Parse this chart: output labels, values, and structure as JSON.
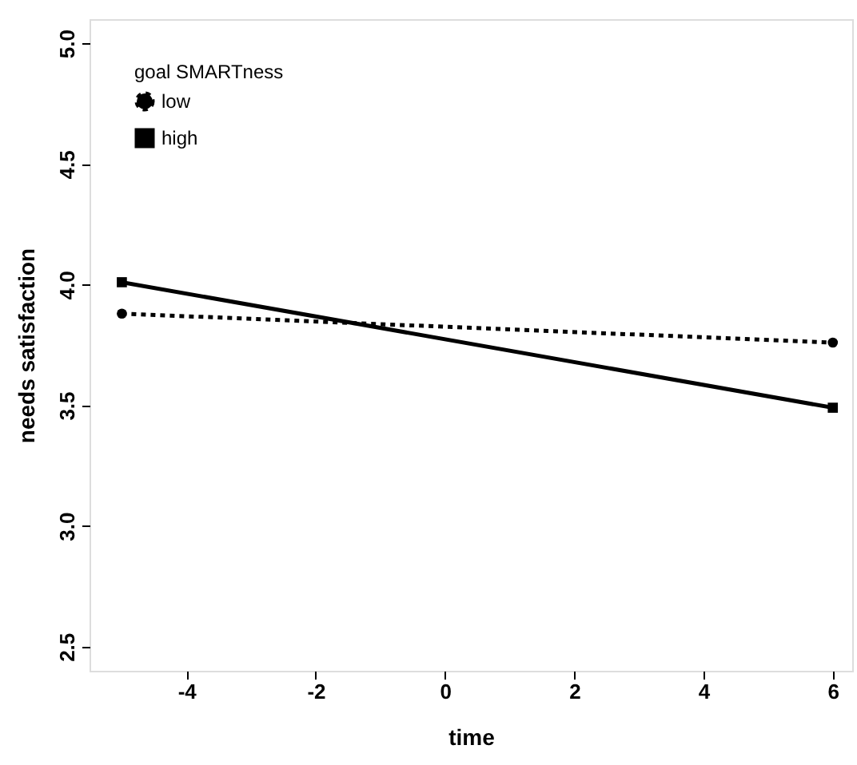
{
  "chart_data": {
    "type": "line",
    "xlabel": "time",
    "ylabel": "needs satisfaction",
    "legend_title": "goal SMARTness",
    "x": [
      -5,
      6
    ],
    "series": [
      {
        "name": "low",
        "color": "#000000",
        "values": [
          3.88,
          3.76
        ],
        "line_style": "dotted",
        "marker": "circle"
      },
      {
        "name": "high",
        "color": "#000000",
        "values": [
          4.01,
          3.49
        ],
        "line_style": "solid",
        "marker": "square"
      }
    ],
    "xlim": [
      -5.5,
      6.3
    ],
    "xticks": [
      -4,
      -2,
      0,
      2,
      4,
      6
    ],
    "ylim": [
      2.4,
      5.1
    ],
    "yticks": [
      2.5,
      {
        "value": 3,
        "label": "3.0"
      },
      3.5,
      {
        "value": 4,
        "label": "4.0"
      },
      4.5,
      {
        "value": 5,
        "label": "5.0"
      }
    ],
    "grid": false,
    "legend": "top left"
  }
}
